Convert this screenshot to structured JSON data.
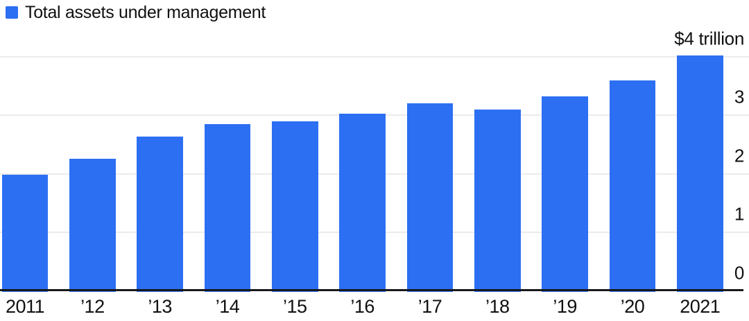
{
  "chart_data": {
    "type": "bar",
    "legend_label": "Total assets under management",
    "legend_position": "top-left",
    "categories": [
      "2011",
      "’12",
      "’13",
      "’14",
      "’15",
      "’16",
      "’17",
      "’18",
      "’19",
      "’20",
      "2021"
    ],
    "values": [
      1.98,
      2.25,
      2.63,
      2.85,
      2.9,
      3.02,
      3.2,
      3.09,
      3.32,
      3.59,
      4.02
    ],
    "units": "trillions of dollars",
    "ylim": [
      0,
      4
    ],
    "yticks": [
      {
        "value": 0,
        "label": "0"
      },
      {
        "value": 1,
        "label": "1"
      },
      {
        "value": 2,
        "label": "2"
      },
      {
        "value": 3,
        "label": "3"
      },
      {
        "value": 4,
        "label": "$4 trillion"
      }
    ],
    "grid": true,
    "colors": {
      "bar": "#2D6FF2",
      "gridline": "#EBEBEB",
      "axis_line": "#16181C",
      "text": "#101010",
      "background": "#FFFFFF"
    }
  }
}
